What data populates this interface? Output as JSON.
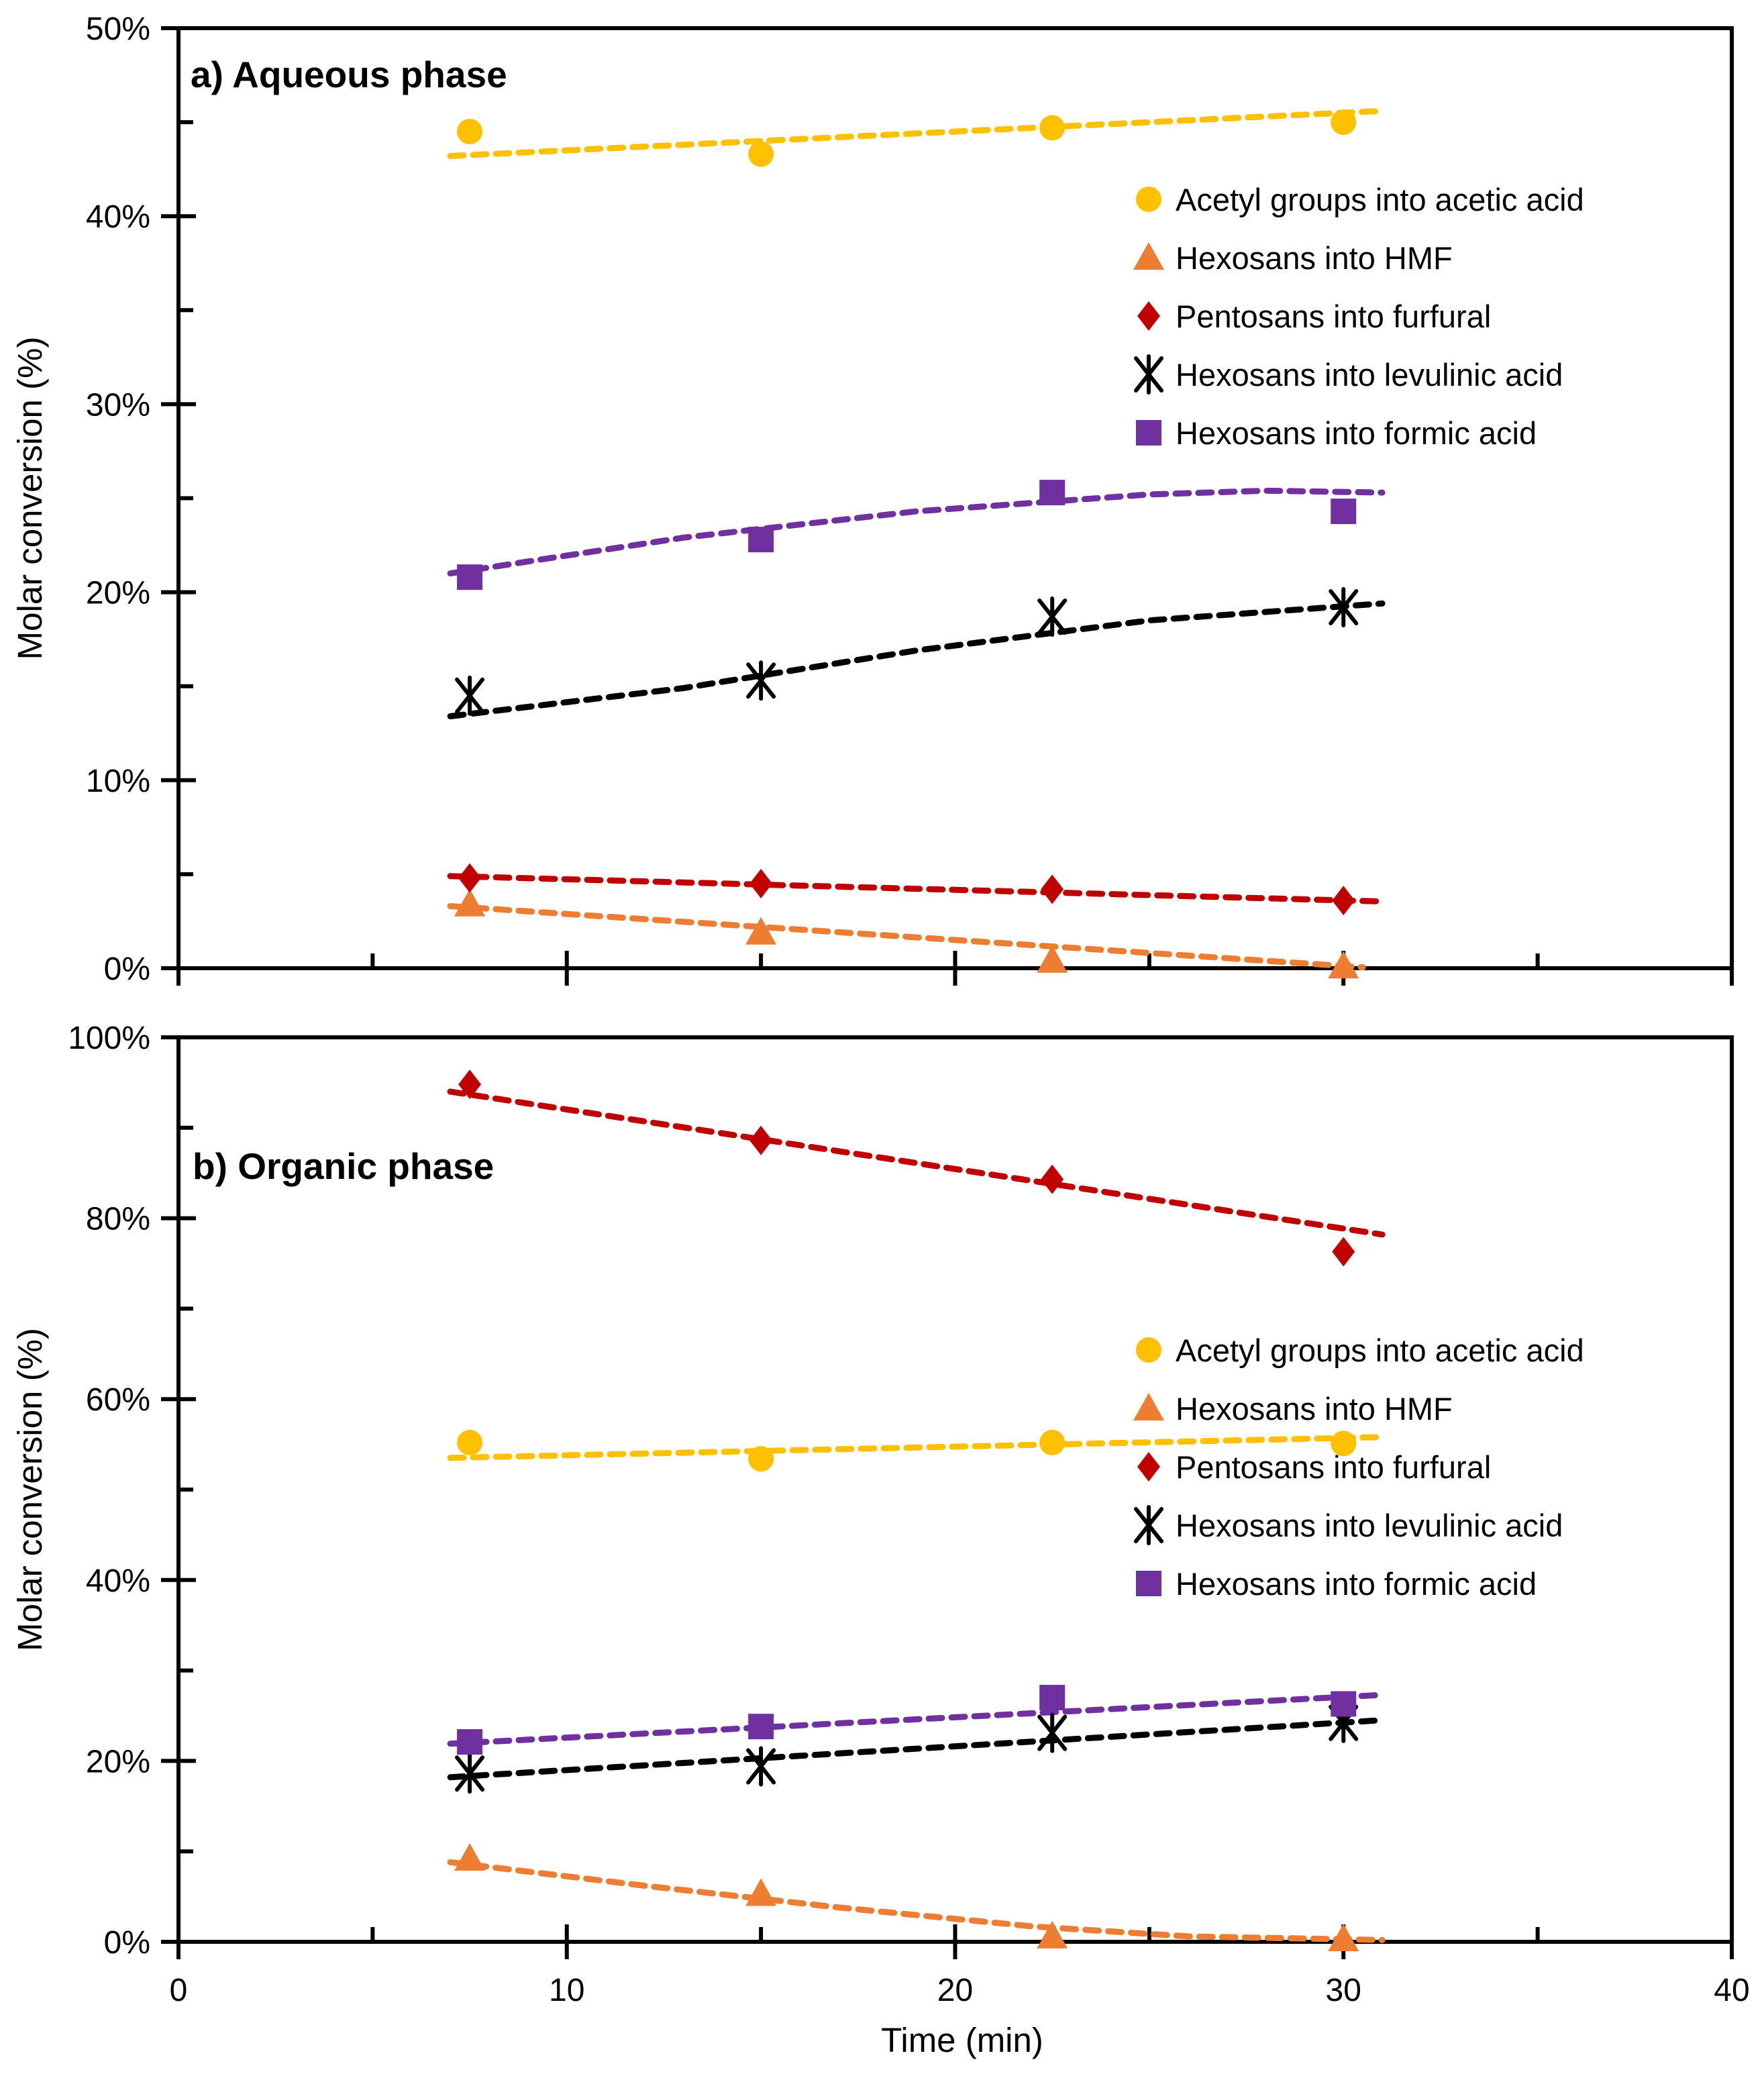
{
  "figure": {
    "background": "#ffffff",
    "x_axis_title": "Time (min)",
    "y_axis_title": "Molar conversion (%)",
    "x_tick_labels": [
      "0",
      "10",
      "20",
      "30",
      "40"
    ]
  },
  "colors": {
    "acetic": "#FFC000",
    "hmf": "#ED7D31",
    "furfural": "#C00000",
    "levulinic": "#000000",
    "formic": "#7030A0"
  },
  "chart_data": [
    {
      "type": "scatter",
      "panel": "a",
      "title": "a) Aqueous phase",
      "ylabel": "Molar conversion (%)",
      "xlabel": "",
      "xlim": [
        0,
        40
      ],
      "ylim": [
        0,
        50
      ],
      "x_major_ticks": [
        0,
        10,
        20,
        30,
        40
      ],
      "x_minor_ticks": [
        5,
        15,
        25,
        35
      ],
      "y_major_ticks": [
        0,
        10,
        20,
        30,
        40,
        50
      ],
      "y_minor_ticks": [
        5,
        15,
        25,
        35,
        45
      ],
      "y_tick_labels": [
        "0%",
        "10%",
        "20%",
        "30%",
        "40%",
        "50%"
      ],
      "grid": false,
      "legend_position": "inside-upper-right",
      "x": [
        7.5,
        15,
        22.5,
        30
      ],
      "series": [
        {
          "key": "acetic",
          "name": "Acetyl groups into acetic acid",
          "marker": "circle",
          "color": "#FFC000",
          "values": [
            44.5,
            43.3,
            44.7,
            45.0
          ],
          "trend": [
            [
              7,
              43.2
            ],
            [
              31,
              45.6
            ]
          ]
        },
        {
          "key": "hmf",
          "name": "Hexosans into HMF",
          "marker": "triangle",
          "color": "#ED7D31",
          "values": [
            3.4,
            1.9,
            0.4,
            0.1
          ],
          "trend": [
            [
              7,
              3.3
            ],
            [
              30.5,
              0.05
            ]
          ]
        },
        {
          "key": "furfural",
          "name": "Pentosans into furfural",
          "marker": "diamond",
          "color": "#C00000",
          "values": [
            4.8,
            4.5,
            4.2,
            3.6
          ],
          "trend": [
            [
              7,
              4.9
            ],
            [
              31,
              3.55
            ]
          ]
        },
        {
          "key": "levulinic",
          "name": "Hexosans into levulinic acid",
          "marker": "star",
          "color": "#000000",
          "values": [
            14.5,
            15.3,
            18.7,
            19.2
          ],
          "trend": [
            [
              7,
              13.4
            ],
            [
              13,
              14.9
            ],
            [
              19,
              16.9
            ],
            [
              25,
              18.5
            ],
            [
              31,
              19.4
            ]
          ]
        },
        {
          "key": "formic",
          "name": "Hexosans into formic acid",
          "marker": "square",
          "color": "#7030A0",
          "values": [
            20.8,
            22.8,
            25.3,
            24.3
          ],
          "trend": [
            [
              7,
              21.0
            ],
            [
              13,
              22.9
            ],
            [
              19,
              24.3
            ],
            [
              25,
              25.2
            ],
            [
              28,
              25.4
            ],
            [
              31,
              25.3
            ]
          ]
        }
      ]
    },
    {
      "type": "scatter",
      "panel": "b",
      "title": "b) Organic phase",
      "ylabel": "Molar conversion (%)",
      "xlabel": "Time (min)",
      "xlim": [
        0,
        40
      ],
      "ylim": [
        0,
        100
      ],
      "x_major_ticks": [
        0,
        10,
        20,
        30,
        40
      ],
      "x_minor_ticks": [
        5,
        15,
        25,
        35
      ],
      "y_major_ticks": [
        0,
        20,
        40,
        60,
        80,
        100
      ],
      "y_minor_ticks": [
        10,
        30,
        50,
        70,
        90
      ],
      "y_tick_labels": [
        "0%",
        "20%",
        "40%",
        "60%",
        "80%",
        "100%"
      ],
      "grid": false,
      "legend_position": "inside-middle-right",
      "x": [
        7.5,
        15,
        22.5,
        30
      ],
      "series": [
        {
          "key": "acetic",
          "name": "Acetyl groups into acetic acid",
          "marker": "circle",
          "color": "#FFC000",
          "values": [
            55.2,
            53.4,
            55.2,
            55.1
          ],
          "trend": [
            [
              7,
              53.5
            ],
            [
              31,
              55.8
            ]
          ]
        },
        {
          "key": "hmf",
          "name": "Hexosans into HMF",
          "marker": "triangle",
          "color": "#ED7D31",
          "values": [
            9.2,
            5.3,
            0.6,
            0.3
          ],
          "trend": [
            [
              7,
              8.8
            ],
            [
              12,
              6.2
            ],
            [
              17,
              3.8
            ],
            [
              22,
              1.7
            ],
            [
              26,
              0.6
            ],
            [
              31,
              0.2
            ]
          ]
        },
        {
          "key": "furfural",
          "name": "Pentosans into furfural",
          "marker": "diamond",
          "color": "#C00000",
          "values": [
            94.8,
            88.6,
            84.3,
            76.3
          ],
          "trend": [
            [
              7,
              94.0
            ],
            [
              31,
              78.2
            ]
          ]
        },
        {
          "key": "levulinic",
          "name": "Hexosans into levulinic acid",
          "marker": "star",
          "color": "#000000",
          "values": [
            18.6,
            19.4,
            23.1,
            24.2
          ],
          "trend": [
            [
              7,
              18.2
            ],
            [
              31,
              24.5
            ]
          ]
        },
        {
          "key": "formic",
          "name": "Hexosans into formic acid",
          "marker": "square",
          "color": "#7030A0",
          "values": [
            22.1,
            23.8,
            27.0,
            26.3
          ],
          "trend": [
            [
              7,
              21.9
            ],
            [
              31,
              27.3
            ]
          ]
        }
      ]
    }
  ]
}
